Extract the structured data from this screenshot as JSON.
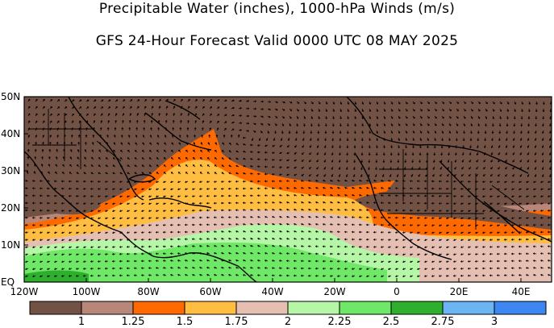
{
  "title": {
    "line1": "Precipitable Water (inches), 1000-hPa Winds (m/s)",
    "line2": "GFS 24-Hour Forecast Valid 0000 UTC 08 MAY 2025"
  },
  "axes": {
    "lat_labels": [
      "50N",
      "40N",
      "30N",
      "20N",
      "10N",
      "EQ"
    ],
    "lon_labels": [
      "120W",
      "100W",
      "80W",
      "60W",
      "40W",
      "20W",
      "0",
      "20E",
      "40E"
    ]
  },
  "colorbar": {
    "colors": [
      "#735246",
      "#b8877a",
      "#ff6a00",
      "#ffbd42",
      "#e6bfb3",
      "#b5f7a6",
      "#6ee866",
      "#2eb02e",
      "#6bb5f2",
      "#3d87f2"
    ],
    "labels": [
      "1",
      "1.25",
      "1.5",
      "1.75",
      "2",
      "2.25",
      "2.5",
      "2.75",
      "3"
    ]
  }
}
